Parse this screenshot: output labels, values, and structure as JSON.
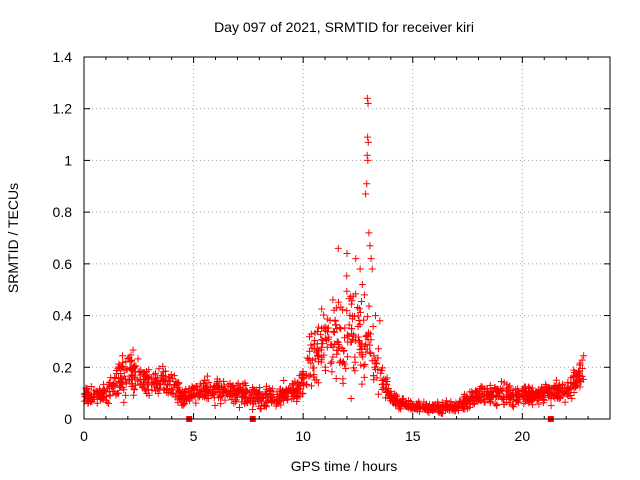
{
  "chart_data": {
    "type": "scatter",
    "title": "Day 097 of 2021, SRMTID for receiver kiri",
    "xlabel": "GPS time / hours",
    "ylabel": "SRMTID / TECUs",
    "xlim": [
      0,
      24
    ],
    "ylim": [
      0,
      1.4
    ],
    "x_ticks": [
      0,
      5,
      10,
      15,
      20
    ],
    "y_ticks": [
      0,
      0.2,
      0.4,
      0.6,
      0.8,
      1,
      1.2,
      1.4
    ],
    "x_tick_labels": [
      "0",
      "5",
      "10",
      "15",
      "20"
    ],
    "y_tick_labels": [
      "0",
      "0.2",
      "0.4",
      "0.6",
      "0.8",
      "1",
      "1.2",
      "1.4"
    ],
    "grid": true,
    "marker": "+",
    "color": "#ff0000",
    "gap_markers_x": [
      4.8,
      7.7,
      21.3
    ],
    "profile": {
      "hours": [
        0.0,
        0.5,
        1.0,
        1.5,
        2.0,
        2.5,
        3.0,
        3.5,
        4.0,
        4.5,
        5.0,
        6.0,
        7.0,
        8.0,
        9.0,
        9.8,
        10.3,
        10.8,
        11.3,
        11.8,
        12.3,
        12.8,
        13.2,
        13.6,
        14.0,
        14.5,
        15.0,
        16.0,
        17.0,
        17.5,
        18.0,
        18.5,
        19.0,
        20.0,
        21.0,
        22.0,
        22.5,
        22.8
      ],
      "median": [
        0.09,
        0.09,
        0.1,
        0.14,
        0.19,
        0.17,
        0.14,
        0.15,
        0.13,
        0.09,
        0.1,
        0.11,
        0.1,
        0.08,
        0.09,
        0.11,
        0.22,
        0.28,
        0.3,
        0.32,
        0.35,
        0.32,
        0.24,
        0.15,
        0.08,
        0.06,
        0.05,
        0.04,
        0.05,
        0.07,
        0.1,
        0.09,
        0.1,
        0.09,
        0.1,
        0.11,
        0.15,
        0.2
      ],
      "spread": [
        0.03,
        0.03,
        0.04,
        0.06,
        0.08,
        0.06,
        0.05,
        0.05,
        0.05,
        0.04,
        0.04,
        0.04,
        0.04,
        0.04,
        0.04,
        0.04,
        0.1,
        0.13,
        0.15,
        0.16,
        0.17,
        0.16,
        0.11,
        0.06,
        0.03,
        0.02,
        0.02,
        0.02,
        0.02,
        0.03,
        0.04,
        0.04,
        0.04,
        0.04,
        0.04,
        0.04,
        0.05,
        0.05
      ]
    },
    "outliers": [
      {
        "x": 11.6,
        "y": 0.66
      },
      {
        "x": 12.0,
        "y": 0.64
      },
      {
        "x": 12.4,
        "y": 0.62
      },
      {
        "x": 12.6,
        "y": 0.58
      },
      {
        "x": 12.7,
        "y": 0.52
      },
      {
        "x": 12.8,
        "y": 0.48
      },
      {
        "x": 12.85,
        "y": 0.87
      },
      {
        "x": 12.9,
        "y": 0.91
      },
      {
        "x": 12.95,
        "y": 1.0
      },
      {
        "x": 12.92,
        "y": 1.02
      },
      {
        "x": 12.97,
        "y": 1.07
      },
      {
        "x": 12.94,
        "y": 1.09
      },
      {
        "x": 12.96,
        "y": 1.22
      },
      {
        "x": 12.93,
        "y": 1.24
      },
      {
        "x": 13.0,
        "y": 0.72
      },
      {
        "x": 13.05,
        "y": 0.67
      },
      {
        "x": 13.1,
        "y": 0.62
      },
      {
        "x": 13.15,
        "y": 0.58
      },
      {
        "x": 13.3,
        "y": 0.4
      },
      {
        "x": 13.5,
        "y": 0.38
      }
    ]
  }
}
